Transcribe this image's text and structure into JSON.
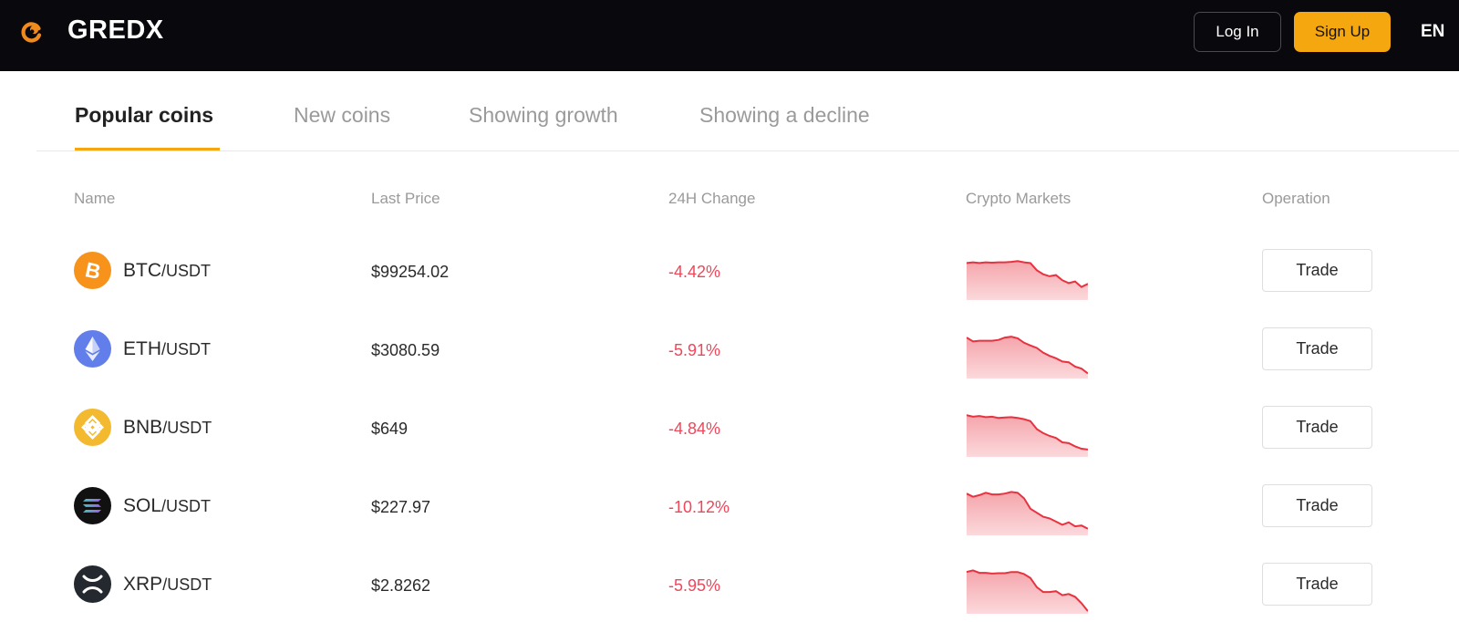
{
  "header": {
    "brand": "GREDX",
    "login_label": "Log In",
    "signup_label": "Sign Up",
    "language": "EN",
    "logo_icon": "gredx-logo-icon"
  },
  "tabs": [
    {
      "label": "Popular coins",
      "active": true
    },
    {
      "label": "New coins",
      "active": false
    },
    {
      "label": "Showing growth",
      "active": false
    },
    {
      "label": "Showing a decline",
      "active": false
    }
  ],
  "table": {
    "columns": [
      "Name",
      "Last Price",
      "24H Change",
      "Crypto Markets",
      "Operation"
    ],
    "rows": [
      {
        "base": "BTC",
        "quote": "/USDT",
        "price": "$99254.02",
        "change": "-4.42%",
        "trade_label": "Trade",
        "icon": "btc-icon",
        "icon_color": "#f7931a",
        "spark": [
          0.88,
          0.9,
          0.88,
          0.9,
          0.89,
          0.9,
          0.9,
          0.91,
          0.93,
          0.9,
          0.88,
          0.7,
          0.6,
          0.55,
          0.58,
          0.45,
          0.38,
          0.42,
          0.28,
          0.36
        ]
      },
      {
        "base": "ETH",
        "quote": "/USDT",
        "price": "$3080.59",
        "change": "-5.91%",
        "trade_label": "Trade",
        "icon": "eth-icon",
        "icon_color": "#627eea",
        "spark": [
          0.98,
          0.88,
          0.9,
          0.9,
          0.9,
          0.92,
          0.98,
          1.0,
          0.96,
          0.85,
          0.78,
          0.72,
          0.6,
          0.52,
          0.46,
          0.38,
          0.36,
          0.25,
          0.2,
          0.08
        ]
      },
      {
        "base": "BNB",
        "quote": "/USDT",
        "price": "$649",
        "change": "-4.84%",
        "trade_label": "Trade",
        "icon": "bnb-icon",
        "icon_color": "#f3ba2f",
        "spark": [
          1.0,
          0.96,
          0.98,
          0.95,
          0.96,
          0.93,
          0.94,
          0.95,
          0.93,
          0.9,
          0.85,
          0.65,
          0.55,
          0.48,
          0.43,
          0.32,
          0.3,
          0.22,
          0.16,
          0.14
        ]
      },
      {
        "base": "SOL",
        "quote": "/USDT",
        "price": "$227.97",
        "change": "-10.12%",
        "trade_label": "Trade",
        "icon": "sol-icon",
        "icon_color": "#111111",
        "spark": [
          1.0,
          0.92,
          0.96,
          1.02,
          0.98,
          0.98,
          1.0,
          1.04,
          1.02,
          0.88,
          0.62,
          0.52,
          0.42,
          0.38,
          0.3,
          0.22,
          0.28,
          0.18,
          0.2,
          0.12
        ]
      },
      {
        "base": "XRP",
        "quote": "/USDT",
        "price": "$2.8262",
        "change": "-5.95%",
        "trade_label": "Trade",
        "icon": "xrp-icon",
        "icon_color": "#23292f",
        "spark": [
          1.0,
          1.04,
          0.98,
          0.98,
          0.96,
          0.97,
          0.97,
          1.0,
          1.0,
          0.95,
          0.85,
          0.62,
          0.5,
          0.5,
          0.52,
          0.42,
          0.45,
          0.38,
          0.22,
          0.02
        ]
      }
    ]
  }
}
